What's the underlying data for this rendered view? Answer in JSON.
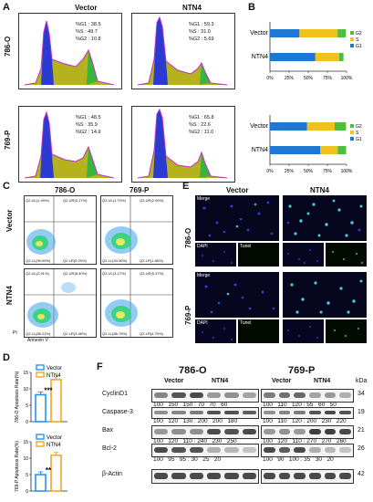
{
  "panels": {
    "A": "A",
    "B": "B",
    "C": "C",
    "D": "D",
    "E": "E",
    "F": "F"
  },
  "panelA": {
    "col_vector": "Vector",
    "col_ntn4": "NTN4",
    "row_786": "786-O",
    "row_769": "769-P",
    "stats": {
      "r786_vec": [
        "%G1 : 38.5",
        "%S : 49.7",
        "%G2 : 10.8"
      ],
      "r786_ntn": [
        "%G1 : 59.3",
        "%S : 31.0",
        "%G2 : 5.69"
      ],
      "r769_vec": [
        "%G1 : 48.5",
        "%S : 35.9",
        "%G2 : 14.9"
      ],
      "r769_ntn": [
        "%G1 : 65.8",
        "%S : 22.6",
        "%G2 : 11.0"
      ]
    }
  },
  "panelB": {
    "legend": [
      "G2",
      "S",
      "G1"
    ],
    "colors": {
      "G1": "#1f77d4",
      "S": "#f2c21c",
      "G2": "#4fbe3c"
    },
    "xticks": [
      "0%",
      "25%",
      "50%",
      "75%",
      "100%"
    ],
    "chart_top": {
      "categories": [
        "Vector",
        "NTN4"
      ],
      "G1": [
        38.5,
        59.3
      ],
      "S": [
        49.7,
        31.0
      ],
      "G2": [
        10.8,
        5.69
      ]
    },
    "chart_bottom": {
      "categories": [
        "Vector",
        "NTN4"
      ],
      "G1": [
        48.5,
        65.8
      ],
      "S": [
        35.9,
        22.6
      ],
      "G2": [
        14.9,
        11.0
      ]
    }
  },
  "panelC": {
    "col_786": "786-O",
    "col_769": "769-P",
    "row_vector": "Vector",
    "row_ntn4": "NTN4",
    "quads": {
      "v786": [
        "Q2-UL(1.49%)",
        "Q2-UR(3.17%)",
        "Q2-LL(90.09%)",
        "Q2-LR(5.29%)"
      ],
      "v769": [
        "Q2-UL(1.70%)",
        "Q2-UR(2.06%)",
        "Q2-LL(94.36%)",
        "Q2-LR(1.88%)"
      ],
      "n786": [
        "Q2-UL(2.91%)",
        "Q2-UR(8.40%)",
        "Q2-LL(85.21%)",
        "Q2-LR(3.48%)"
      ],
      "n769": [
        "Q2-UL(3.17%)",
        "Q2-UR(5.37%)",
        "Q2-LL(86.75%)",
        "Q2-LR(4.75%)"
      ]
    },
    "xaxis": "Annexin V",
    "yaxis": "PI"
  },
  "panelD": {
    "legend": [
      "Vector",
      "NTN4"
    ],
    "colors": {
      "Vector": "#2196f3",
      "NTN4": "#f5a623"
    },
    "chart_top": {
      "ylabel": "786-O Apoptosis Rate(%)",
      "yticks": [
        "0",
        "5",
        "10",
        "15"
      ],
      "values": [
        8.2,
        12.8
      ],
      "sig": "***"
    },
    "chart_bottom": {
      "ylabel": "769-P Apoptosis Rate(%)",
      "yticks": [
        "0",
        "5",
        "10",
        "15"
      ],
      "values": [
        5.0,
        10.9
      ],
      "sig": "**"
    }
  },
  "panelE": {
    "col_vector": "Vector",
    "col_ntn4": "NTN4",
    "row_786": "786-O",
    "row_769": "769-P",
    "merge": "Merge",
    "dapi": "DAPI",
    "tunel": "Tunel"
  },
  "panelF": {
    "cell_786": "786-O",
    "cell_769": "769-P",
    "vector": "Vector",
    "ntn4": "NTN4",
    "kda": "kDa",
    "proteins": [
      {
        "name": "CyclinD1",
        "kda": "34",
        "r786": "100   150   150 : 70   70   60",
        "r769": "100   110   120 : 55   60   50"
      },
      {
        "name": "Caspase-3",
        "kda": "19",
        "r786": "100   120   130 : 200   200   180",
        "r769": "100   110   120 : 200   230   220"
      },
      {
        "name": "Bax",
        "kda": "21",
        "r786": "100   120   110 : 240   230   250",
        "r769": "100   120   110 : 270   270   260"
      },
      {
        "name": "Bcl-2",
        "kda": "26",
        "r786": "100   95   95 : 30   25   20",
        "r769": "100   90   100 : 35   30   20"
      },
      {
        "name": "β-Actin",
        "kda": "42",
        "r786": "",
        "r769": ""
      }
    ]
  }
}
